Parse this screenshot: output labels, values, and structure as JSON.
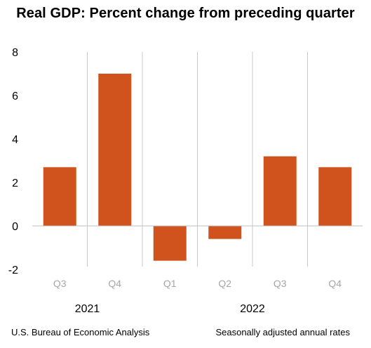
{
  "chart_data": {
    "type": "bar",
    "title": "Real GDP:  Percent change from preceding quarter",
    "categories": [
      "Q3",
      "Q4",
      "Q1",
      "Q2",
      "Q3",
      "Q4"
    ],
    "groups": [
      {
        "label": "2021",
        "categories": [
          "Q3",
          "Q4"
        ]
      },
      {
        "label": "2022",
        "categories": [
          "Q1",
          "Q2",
          "Q3",
          "Q4"
        ]
      }
    ],
    "values": [
      2.7,
      7.0,
      -1.6,
      -0.6,
      3.2,
      2.7
    ],
    "ylim": [
      -2,
      8
    ],
    "yticks": [
      "8",
      "6",
      "4",
      "2",
      "0",
      "-2"
    ],
    "xlabel": "",
    "ylabel": "",
    "grid": false,
    "bar_color": "#d0531e",
    "separator_color": "#c8c8c8",
    "tick_label_color": "#a6a6a6"
  },
  "footer": {
    "source": "U.S. Bureau of Economic Analysis",
    "note": "Seasonally adjusted annual rates"
  }
}
